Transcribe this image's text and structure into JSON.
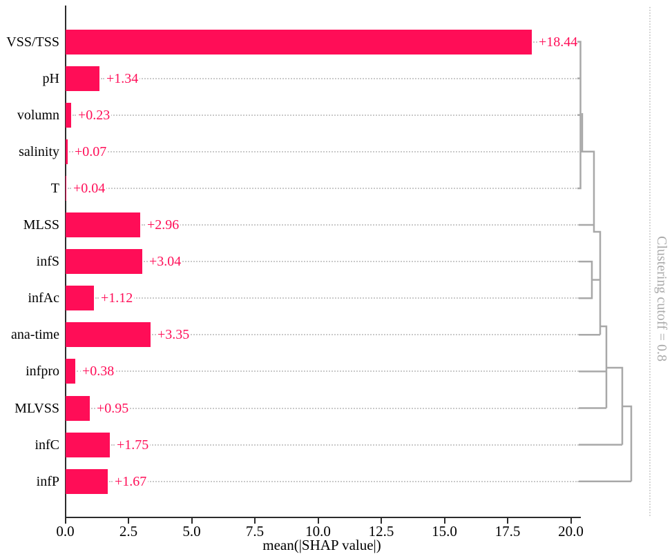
{
  "chart_data": {
    "type": "bar",
    "orientation": "horizontal",
    "title": "",
    "categories": [
      "VSS/TSS",
      "pH",
      "volumn",
      "salinity",
      "T",
      "MLSS",
      "infS",
      "infAc",
      "ana-time",
      "infpro",
      "MLVSS",
      "infC",
      "infP"
    ],
    "values": [
      18.44,
      1.34,
      0.23,
      0.07,
      0.04,
      2.96,
      3.04,
      1.12,
      3.35,
      0.38,
      0.95,
      1.75,
      1.67
    ],
    "bar_labels": [
      "+18.44",
      "+1.34",
      "+0.23",
      "+0.07",
      "+0.04",
      "+2.96",
      "+3.04",
      "+1.12",
      "+3.35",
      "+0.38",
      "+0.95",
      "+1.75",
      "+1.67"
    ],
    "xlabel": "mean(|SHAP value|)",
    "ylabel": "",
    "xticks": [
      0.0,
      2.5,
      5.0,
      7.5,
      10.0,
      12.5,
      15.0,
      17.5,
      20.0
    ],
    "xtick_labels": [
      "0.0",
      "2.5",
      "5.0",
      "7.5",
      "10.0",
      "12.5",
      "15.0",
      "17.5",
      "20.0"
    ],
    "xlim": [
      0,
      20.4
    ],
    "grid": "dotted horizontal row guides",
    "legend": "none",
    "bar_color": "#ff0d57",
    "annotation": "Clustering cutoff = 0.8"
  },
  "x_axis": {
    "label": "mean(|SHAP value|)",
    "tick_labels": [
      "0.0",
      "2.5",
      "5.0",
      "7.5",
      "10.0",
      "12.5",
      "15.0",
      "17.5",
      "20.0"
    ]
  },
  "clustering": {
    "cutoff_label": "Clustering cutoff = 0.8",
    "dendrogram_color": "#a8a8a8",
    "segments": [
      [
        [
          836,
          60.5
        ],
        [
          840.5,
          60.5
        ],
        [
          840.5,
          273
        ],
        [
          836,
          273
        ]
      ],
      [
        [
          836,
          113.6
        ],
        [
          840.5,
          113.6
        ]
      ],
      [
        [
          836,
          166.7
        ],
        [
          840.5,
          166.7
        ]
      ],
      [
        [
          843,
          164
        ],
        [
          843,
          219.8
        ]
      ],
      [
        [
          840.5,
          219.8
        ],
        [
          860,
          219.8
        ],
        [
          860,
          326
        ]
      ],
      [
        [
          838,
          326
        ],
        [
          860,
          326
        ]
      ],
      [
        [
          860,
          326
        ],
        [
          860,
          336
        ],
        [
          869,
          336
        ],
        [
          869,
          485.3
        ]
      ],
      [
        [
          838,
          379.1
        ],
        [
          857,
          379.1
        ],
        [
          857,
          432.2
        ],
        [
          838,
          432.2
        ]
      ],
      [
        [
          857,
          405.6
        ],
        [
          869,
          405.6
        ]
      ],
      [
        [
          838,
          485.3
        ],
        [
          869,
          485.3
        ]
      ],
      [
        [
          869,
          473
        ],
        [
          878,
          473
        ],
        [
          878,
          591.5
        ]
      ],
      [
        [
          838,
          538.4
        ],
        [
          878,
          538.4
        ]
      ],
      [
        [
          838,
          591.5
        ],
        [
          878,
          591.5
        ]
      ],
      [
        [
          878,
          533
        ],
        [
          901,
          533
        ],
        [
          901,
          644.6
        ]
      ],
      [
        [
          838,
          644.6
        ],
        [
          901,
          644.6
        ]
      ],
      [
        [
          901,
          589
        ],
        [
          914,
          589
        ],
        [
          914,
          697.7
        ]
      ],
      [
        [
          838,
          697.7
        ],
        [
          914,
          697.7
        ]
      ]
    ]
  },
  "colors": {
    "bar": "#ff0d57",
    "value_text": "#ff0d57",
    "axis": "#2b2b2b",
    "grid_dots": "#c9c9c9",
    "cutoff_text": "#a9a9a9"
  }
}
